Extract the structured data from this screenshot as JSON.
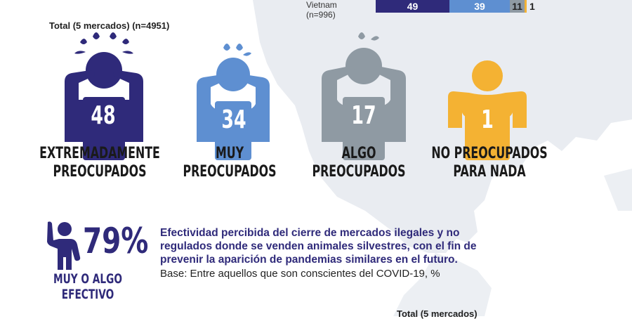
{
  "colors": {
    "dark_blue": "#2f2a7a",
    "mid_blue": "#5e8fd1",
    "gray": "#8f9aa3",
    "yellow": "#f4b233",
    "map": "#e8ebf0"
  },
  "top_bar": {
    "market_label": "Vietnam",
    "sample": "(n=996)",
    "segments": [
      {
        "value": "49",
        "color": "#2f2a7a"
      },
      {
        "value": "39",
        "color": "#5e8fd1"
      },
      {
        "value": "11",
        "color": "#8f9aa3"
      },
      {
        "value": "1",
        "color": "#f4b233"
      }
    ]
  },
  "total_label": "Total (5 mercados) (n=4951)",
  "concern_levels": [
    {
      "value": "48",
      "caption_line1": "EXTREMADAMENTE",
      "caption_line2": "PREOCUPADOS",
      "icon": "extremely-worried-person-icon"
    },
    {
      "value": "34",
      "caption_line1": "MUY",
      "caption_line2": "PREOCUPADOS",
      "icon": "very-worried-person-icon"
    },
    {
      "value": "17",
      "caption_line1": "ALGO",
      "caption_line2": "PREOCUPADOS",
      "icon": "somewhat-worried-person-icon"
    },
    {
      "value": "1",
      "caption_line1": "NO PREOCUPADOS",
      "caption_line2": "PARA NADA",
      "icon": "relaxed-person-icon"
    }
  ],
  "effectiveness": {
    "percent": "79%",
    "label_line1": "MUY O ALGO",
    "label_line2": "EFECTIVO",
    "title_lines": [
      "Efectividad percibida del cierre de mercados ilegales y no",
      "regulados donde se venden animales silvestres, con el fin de",
      "prevenir la aparición de pandemias similares en el futuro."
    ],
    "base": "Base: Entre aquellos que son conscientes del COVID-19, %"
  },
  "bottom_total_label": "Total (5 mercados)"
}
